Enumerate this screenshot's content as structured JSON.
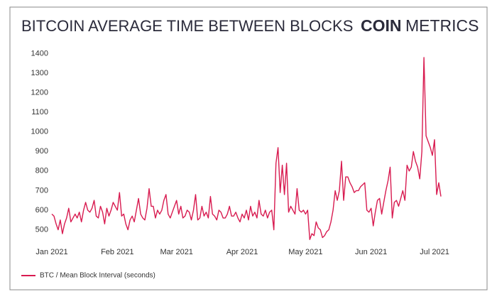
{
  "chart_data": {
    "type": "line",
    "title": "BITCOIN AVERAGE TIME BETWEEN BLOCKS",
    "logo_bold": "COIN",
    "logo_light": "METRICS",
    "categories": [
      "Jan 2021",
      null,
      null,
      null,
      null,
      null,
      null,
      null,
      null,
      null,
      null,
      null,
      null,
      null,
      null,
      null,
      null,
      null,
      null,
      null,
      null,
      null,
      null,
      null,
      null,
      null,
      null,
      null,
      null,
      null,
      null,
      "Feb 2021",
      null,
      null,
      null,
      null,
      null,
      null,
      null,
      null,
      null,
      null,
      null,
      null,
      null,
      null,
      null,
      null,
      null,
      null,
      null,
      null,
      null,
      null,
      null,
      null,
      null,
      null,
      null,
      "Mar 2021",
      null,
      null,
      null,
      null,
      null,
      null,
      null,
      null,
      null,
      null,
      null,
      null,
      null,
      null,
      null,
      null,
      null,
      null,
      null,
      null,
      null,
      null,
      null,
      null,
      null,
      null,
      null,
      null,
      null,
      null,
      "Apr 2021",
      null,
      null,
      null,
      null,
      null,
      null,
      null,
      null,
      null,
      null,
      null,
      null,
      null,
      null,
      null,
      null,
      null,
      null,
      null,
      null,
      null,
      null,
      null,
      null,
      null,
      null,
      null,
      null,
      null,
      "May 2021",
      null,
      null,
      null,
      null,
      null,
      null,
      null,
      null,
      null,
      null,
      null,
      null,
      null,
      null,
      null,
      null,
      null,
      null,
      null,
      null,
      null,
      null,
      null,
      null,
      null,
      null,
      null,
      null,
      null,
      null,
      "Jun 2021",
      null,
      null,
      null,
      null,
      null,
      null,
      null,
      null,
      null,
      null,
      null,
      null,
      null,
      null,
      null,
      null,
      null,
      null,
      null,
      null,
      null,
      null,
      null,
      null,
      null,
      null,
      null,
      null,
      null,
      "Jul 2021",
      null,
      null,
      null
    ],
    "series": [
      {
        "name": "BTC / Mean Block Interval (seconds)",
        "color": "#d81b50",
        "values": [
          580,
          570,
          530,
          500,
          550,
          480,
          530,
          560,
          610,
          540,
          560,
          580,
          560,
          590,
          540,
          600,
          640,
          600,
          590,
          610,
          650,
          570,
          560,
          620,
          590,
          530,
          610,
          570,
          600,
          640,
          620,
          600,
          690,
          570,
          580,
          530,
          500,
          550,
          570,
          540,
          600,
          660,
          580,
          560,
          550,
          610,
          710,
          620,
          620,
          560,
          600,
          580,
          600,
          650,
          680,
          580,
          560,
          590,
          620,
          650,
          580,
          620,
          560,
          570,
          600,
          590,
          550,
          600,
          680,
          550,
          560,
          620,
          570,
          590,
          560,
          670,
          580,
          570,
          550,
          600,
          590,
          560,
          560,
          580,
          620,
          570,
          570,
          590,
          560,
          540,
          580,
          560,
          600,
          550,
          620,
          570,
          590,
          560,
          650,
          580,
          570,
          600,
          560,
          590,
          600,
          500,
          840,
          920,
          690,
          830,
          680,
          840,
          590,
          620,
          600,
          580,
          710,
          600,
          590,
          600,
          580,
          600,
          450,
          480,
          470,
          540,
          510,
          500,
          460,
          470,
          490,
          500,
          540,
          600,
          700,
          650,
          700,
          850,
          650,
          770,
          770,
          740,
          720,
          690,
          700,
          700,
          720,
          730,
          740,
          600,
          590,
          610,
          520,
          590,
          650,
          660,
          580,
          640,
          700,
          750,
          820,
          560,
          640,
          650,
          620,
          660,
          700,
          650,
          830,
          800,
          820,
          900,
          850,
          820,
          760,
          900,
          1380,
          980,
          950,
          920,
          880,
          960,
          680,
          740,
          670
        ]
      }
    ],
    "ylim": [
      440,
      1420
    ],
    "yticks": [
      500,
      600,
      700,
      800,
      900,
      1000,
      1100,
      1200,
      1300,
      1400
    ],
    "grid": false,
    "legend": "bottom-left"
  }
}
